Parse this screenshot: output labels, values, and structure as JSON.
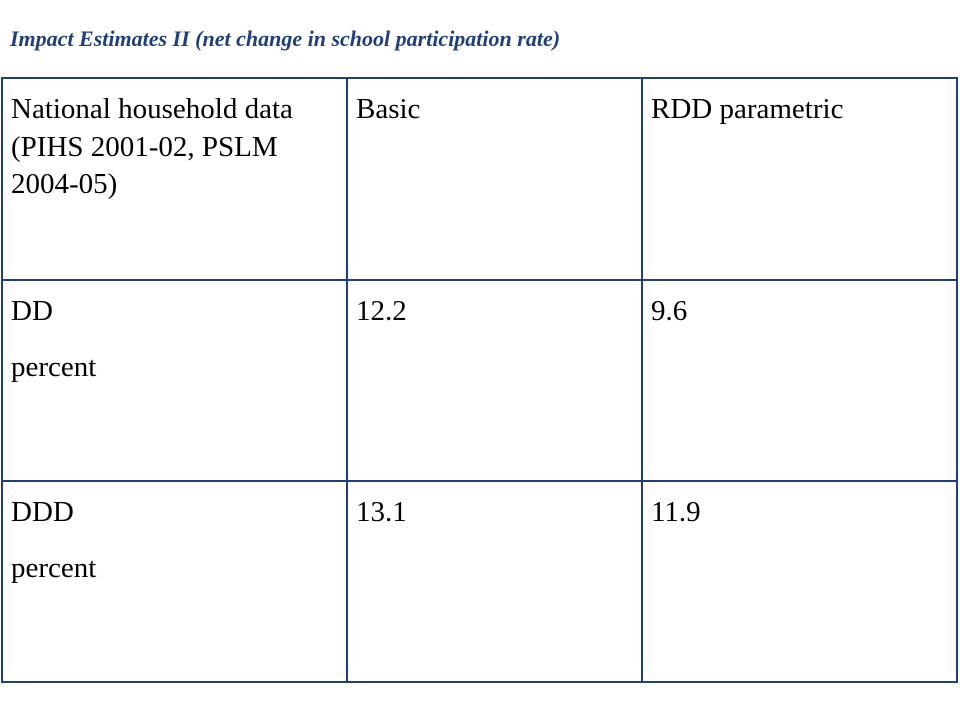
{
  "header": {
    "title": "Impact Estimates II (net change in school participation rate)"
  },
  "table": {
    "rows": [
      [
        [
          "National household data (PIHS 2001-02, PSLM 2004-05)"
        ],
        [
          "Basic"
        ],
        [
          "RDD parametric"
        ]
      ],
      [
        [
          "DD",
          "percent"
        ],
        [
          "12.2"
        ],
        [
          "9.6"
        ]
      ],
      [
        [
          "DDD",
          "percent"
        ],
        [
          "13.1"
        ],
        [
          "11.9"
        ]
      ]
    ]
  }
}
